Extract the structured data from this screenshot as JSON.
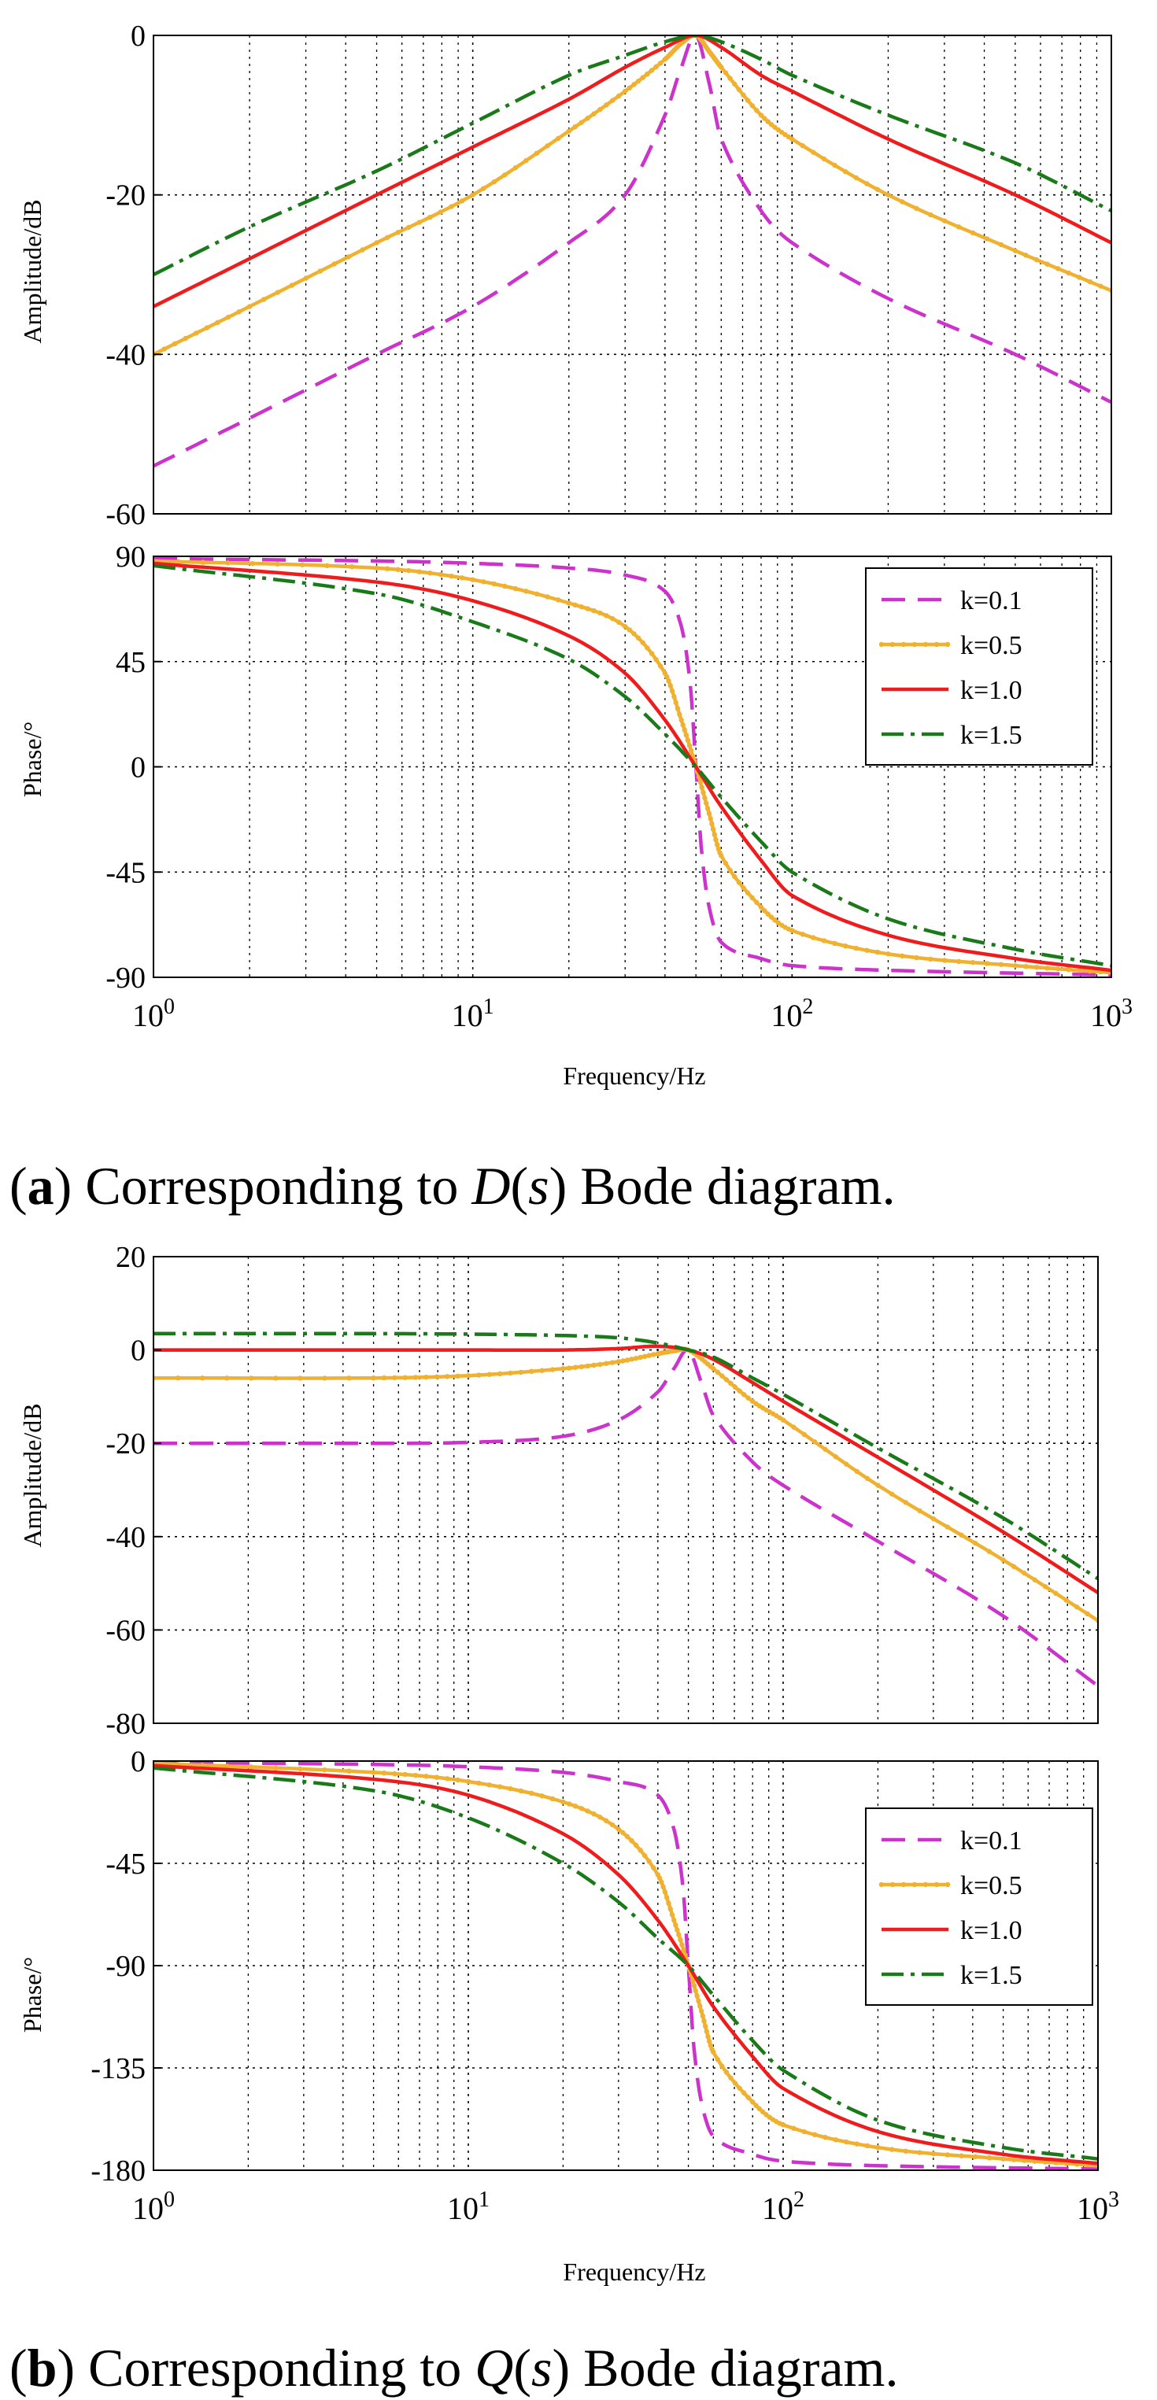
{
  "figure": {
    "panels": [
      {
        "caption": {
          "letter": "a",
          "open": "(",
          "close": ")",
          "prefix": " Corresponding to ",
          "func": "D",
          "arg": "s",
          "suffix": " Bode diagram."
        },
        "subplots": [
          {
            "role": "amplitude",
            "ylabel": "Amplitude/dB"
          },
          {
            "role": "phase",
            "ylabel": "Phase/°"
          }
        ],
        "xlabel": "Frequency/Hz"
      },
      {
        "caption": {
          "letter": "b",
          "open": "(",
          "close": ")",
          "prefix": " Corresponding to ",
          "func": "Q",
          "arg": "s",
          "suffix": " Bode diagram."
        },
        "subplots": [
          {
            "role": "amplitude",
            "ylabel": "Amplitude/dB"
          },
          {
            "role": "phase",
            "ylabel": "Phase/°"
          }
        ],
        "xlabel": "Frequency/Hz"
      }
    ],
    "legend": [
      "k=0.1",
      "k=0.5",
      "k=1.0",
      "k=1.5"
    ],
    "colors": {
      "k01": "#cc33cc",
      "k05": "#f0b030",
      "k05b": "#f5cc10",
      "k10": "#ee1c1c",
      "k15": "#1a7a1a"
    }
  },
  "chart_data": [
    {
      "type": "line",
      "title": "",
      "xlabel": "Frequency/Hz",
      "ylabel": "Amplitude/dB",
      "xscale": "log",
      "xlim": [
        1,
        1000
      ],
      "ylim": [
        -60,
        0
      ],
      "yticks": [
        0,
        -20,
        -40,
        -60
      ],
      "xticks": [
        "10^0",
        "10^1",
        "10^2",
        "10^3"
      ],
      "grid": true,
      "series": [
        {
          "name": "k=0.1",
          "x": [
            1,
            2,
            5,
            10,
            20,
            30,
            40,
            45,
            50,
            55,
            60,
            80,
            100,
            200,
            500,
            1000
          ],
          "y": [
            -54,
            -48,
            -40,
            -34,
            -26,
            -20,
            -10,
            -4,
            0,
            -6,
            -13,
            -22,
            -26,
            -33,
            -40,
            -46
          ]
        },
        {
          "name": "k=0.5",
          "x": [
            1,
            2,
            5,
            10,
            20,
            30,
            40,
            45,
            50,
            55,
            60,
            80,
            100,
            200,
            500,
            1000
          ],
          "y": [
            -40,
            -34,
            -26,
            -20,
            -12,
            -7,
            -3,
            -1,
            0,
            -2,
            -4,
            -10,
            -13,
            -20,
            -27,
            -32
          ]
        },
        {
          "name": "k=1.0",
          "x": [
            1,
            2,
            5,
            10,
            20,
            30,
            40,
            50,
            60,
            80,
            100,
            200,
            500,
            1000
          ],
          "y": [
            -34,
            -28,
            -20,
            -14,
            -8,
            -4,
            -1.5,
            0,
            -1.5,
            -5,
            -7,
            -13,
            -20,
            -26
          ]
        },
        {
          "name": "k=1.5",
          "x": [
            1,
            2,
            5,
            10,
            20,
            30,
            40,
            50,
            60,
            80,
            100,
            200,
            500,
            1000
          ],
          "y": [
            -30,
            -24,
            -17,
            -11,
            -5,
            -2.5,
            -0.8,
            0,
            -0.8,
            -3,
            -5,
            -10,
            -16,
            -22
          ]
        }
      ]
    },
    {
      "type": "line",
      "title": "",
      "xlabel": "Frequency/Hz",
      "ylabel": "Phase/°",
      "xscale": "log",
      "xlim": [
        1,
        1000
      ],
      "ylim": [
        -90,
        90
      ],
      "yticks": [
        90,
        45,
        0,
        -45,
        -90
      ],
      "xticks": [
        "10^0",
        "10^1",
        "10^2",
        "10^3"
      ],
      "grid": true,
      "legend": "top-right",
      "series": [
        {
          "name": "k=0.1",
          "x": [
            1,
            5,
            10,
            20,
            30,
            40,
            45,
            48,
            50,
            52,
            55,
            60,
            80,
            100,
            200,
            1000
          ],
          "y": [
            89,
            88,
            87,
            85,
            82,
            75,
            60,
            35,
            0,
            -35,
            -60,
            -75,
            -82,
            -85,
            -87,
            -89
          ]
        },
        {
          "name": "k=0.5",
          "x": [
            1,
            5,
            10,
            20,
            30,
            40,
            45,
            50,
            55,
            60,
            80,
            100,
            200,
            500,
            1000
          ],
          "y": [
            88,
            85,
            80,
            70,
            60,
            40,
            20,
            0,
            -20,
            -38,
            -60,
            -70,
            -80,
            -85,
            -88
          ]
        },
        {
          "name": "k=1.0",
          "x": [
            1,
            5,
            10,
            20,
            30,
            40,
            50,
            60,
            80,
            100,
            200,
            500,
            1000
          ],
          "y": [
            87,
            79,
            71,
            56,
            40,
            20,
            0,
            -17,
            -40,
            -55,
            -72,
            -82,
            -87
          ]
        },
        {
          "name": "k=1.5",
          "x": [
            1,
            5,
            10,
            20,
            30,
            40,
            50,
            60,
            80,
            100,
            200,
            500,
            1000
          ],
          "y": [
            86,
            74,
            62,
            46,
            30,
            14,
            0,
            -13,
            -32,
            -45,
            -65,
            -78,
            -85
          ]
        }
      ]
    },
    {
      "type": "line",
      "title": "",
      "xlabel": "Frequency/Hz",
      "ylabel": "Amplitude/dB",
      "xscale": "log",
      "xlim": [
        1,
        1000
      ],
      "ylim": [
        -80,
        20
      ],
      "yticks": [
        20,
        0,
        -20,
        -40,
        -60,
        -80
      ],
      "xticks": [
        "10^0",
        "10^1",
        "10^2",
        "10^3"
      ],
      "grid": true,
      "series": [
        {
          "name": "k=0.1",
          "x": [
            1,
            5,
            10,
            20,
            30,
            40,
            45,
            50,
            55,
            60,
            80,
            100,
            200,
            500,
            1000
          ],
          "y": [
            -20,
            -20,
            -19.8,
            -18.5,
            -15,
            -9,
            -4,
            0,
            -7,
            -14,
            -24,
            -29,
            -41,
            -57,
            -72
          ]
        },
        {
          "name": "k=0.5",
          "x": [
            1,
            5,
            10,
            20,
            30,
            40,
            45,
            50,
            60,
            80,
            100,
            200,
            500,
            1000
          ],
          "y": [
            -6,
            -6,
            -5.5,
            -4,
            -2.5,
            -0.8,
            -0.2,
            0,
            -4,
            -11,
            -15,
            -29,
            -45,
            -58
          ]
        },
        {
          "name": "k=1.0",
          "x": [
            1,
            5,
            10,
            20,
            30,
            40,
            50,
            60,
            80,
            100,
            200,
            500,
            1000
          ],
          "y": [
            0,
            0,
            0,
            0,
            0.3,
            0.8,
            0,
            -2,
            -7,
            -11,
            -23,
            -39,
            -52
          ]
        },
        {
          "name": "k=1.5",
          "x": [
            1,
            5,
            10,
            20,
            30,
            40,
            50,
            60,
            80,
            100,
            200,
            500,
            1000
          ],
          "y": [
            3.5,
            3.5,
            3.4,
            3.1,
            2.6,
            1.5,
            0,
            -1.5,
            -6,
            -9.5,
            -21,
            -36,
            -49
          ]
        }
      ]
    },
    {
      "type": "line",
      "title": "",
      "xlabel": "Frequency/Hz",
      "ylabel": "Phase/°",
      "xscale": "log",
      "xlim": [
        1,
        1000
      ],
      "ylim": [
        -180,
        0
      ],
      "yticks": [
        0,
        -45,
        -90,
        -135,
        -180
      ],
      "xticks": [
        "10^0",
        "10^1",
        "10^2",
        "10^3"
      ],
      "grid": true,
      "legend": "top-right",
      "series": [
        {
          "name": "k=0.1",
          "x": [
            1,
            5,
            10,
            20,
            30,
            40,
            45,
            48,
            50,
            52,
            55,
            60,
            80,
            100,
            200,
            1000
          ],
          "y": [
            -0.5,
            -1.5,
            -2.5,
            -5,
            -9,
            -15,
            -30,
            -55,
            -90,
            -125,
            -150,
            -165,
            -173,
            -176,
            -178,
            -179.5
          ]
        },
        {
          "name": "k=0.5",
          "x": [
            1,
            5,
            10,
            20,
            30,
            40,
            45,
            50,
            55,
            60,
            80,
            100,
            200,
            500,
            1000
          ],
          "y": [
            -1,
            -5,
            -9,
            -18,
            -30,
            -50,
            -70,
            -90,
            -110,
            -128,
            -150,
            -160,
            -170,
            -175,
            -178
          ]
        },
        {
          "name": "k=1.0",
          "x": [
            1,
            5,
            10,
            20,
            30,
            40,
            50,
            60,
            80,
            100,
            200,
            500,
            1000
          ],
          "y": [
            -2,
            -8,
            -15,
            -32,
            -50,
            -70,
            -90,
            -108,
            -130,
            -144,
            -163,
            -173,
            -177
          ]
        },
        {
          "name": "k=1.5",
          "x": [
            1,
            5,
            10,
            20,
            30,
            40,
            50,
            60,
            80,
            100,
            200,
            500,
            1000
          ],
          "y": [
            -3,
            -13,
            -25,
            -45,
            -62,
            -78,
            -90,
            -103,
            -123,
            -136,
            -158,
            -170,
            -175
          ]
        }
      ]
    }
  ]
}
